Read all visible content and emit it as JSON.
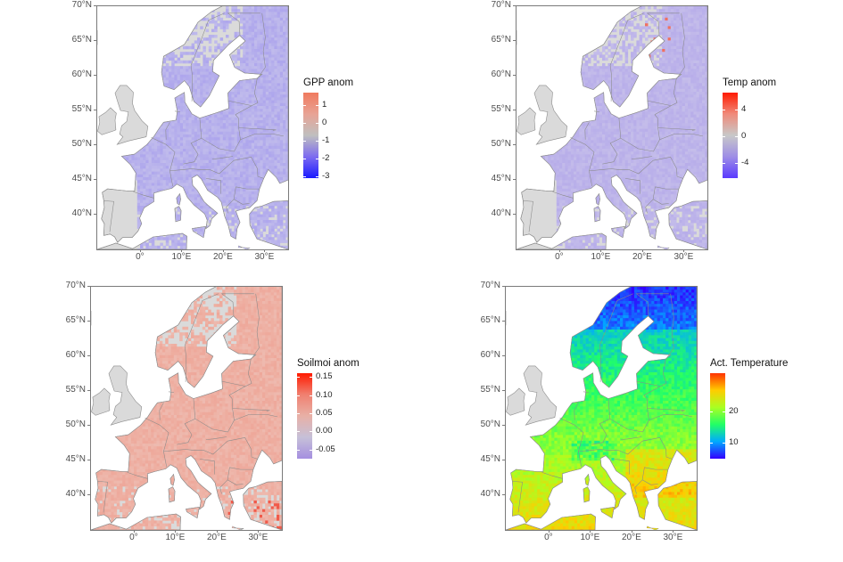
{
  "panels": [
    {
      "id": "gpp",
      "legend_title": "GPP anom",
      "legend_ticks": [
        "1",
        "0",
        "-1",
        "-2",
        "-3"
      ],
      "legend_tick_values": [
        1,
        0,
        -1,
        -2,
        -3
      ],
      "legend_range": [
        -3.1,
        1.7
      ],
      "legend_colors": [
        "#1a1aff",
        "#7d6bf0",
        "#bfbfbf",
        "#e8a395",
        "#f07a5e"
      ],
      "fill_color": "#b8b2ec",
      "lat_ticks": [
        "70°N",
        "65°N",
        "60°N",
        "55°N",
        "50°N",
        "45°N",
        "40°N"
      ],
      "lon_ticks": [
        "0°",
        "10°E",
        "20°E",
        "30°E"
      ]
    },
    {
      "id": "temp",
      "legend_title": "Temp anom",
      "legend_ticks": [
        "4",
        "0",
        "-4"
      ],
      "legend_tick_values": [
        4,
        0,
        -4
      ],
      "legend_range": [
        -6.2,
        6.5
      ],
      "legend_colors": [
        "#5a3aff",
        "#9e8ee6",
        "#c8c8c8",
        "#f08a7a",
        "#ff1a00"
      ],
      "fill_color": "#bdb4ea",
      "lat_ticks": [
        "70°N",
        "65°N",
        "60°N",
        "55°N",
        "50°N",
        "45°N",
        "40°N"
      ],
      "lon_ticks": [
        "0°",
        "10°E",
        "20°E",
        "30°E"
      ]
    },
    {
      "id": "soilmoi",
      "legend_title": "Soilmoi anom",
      "legend_ticks": [
        "0.15",
        "0.10",
        "0.05",
        "0.00",
        "-0.05"
      ],
      "legend_tick_values": [
        0.15,
        0.1,
        0.05,
        0.0,
        -0.05
      ],
      "legend_range": [
        -0.075,
        0.16
      ],
      "legend_colors": [
        "#a58fe0",
        "#c6c0d8",
        "#e8b0a6",
        "#f08070",
        "#ff1a00"
      ],
      "fill_color": "#eeb0a3",
      "lat_ticks": [
        "70°N",
        "65°N",
        "60°N",
        "55°N",
        "50°N",
        "45°N",
        "40°N"
      ],
      "lon_ticks": [
        "0°",
        "10°E",
        "20°E",
        "30°E"
      ]
    },
    {
      "id": "acttemp",
      "legend_title": "Act. Temperature",
      "legend_ticks": [
        "20",
        "10"
      ],
      "legend_tick_values": [
        20,
        10
      ],
      "legend_range": [
        5,
        32
      ],
      "legend_colors": [
        "#3300ff",
        "#00aaff",
        "#22ff66",
        "#aaff22",
        "#ffcc00",
        "#ff3300"
      ],
      "fill_color": "#88f088",
      "lat_ticks": [
        "70°N",
        "65°N",
        "60°N",
        "55°N",
        "50°N",
        "45°N",
        "40°N"
      ],
      "lon_ticks": [
        "0°",
        "10°E",
        "20°E",
        "30°E"
      ]
    }
  ]
}
